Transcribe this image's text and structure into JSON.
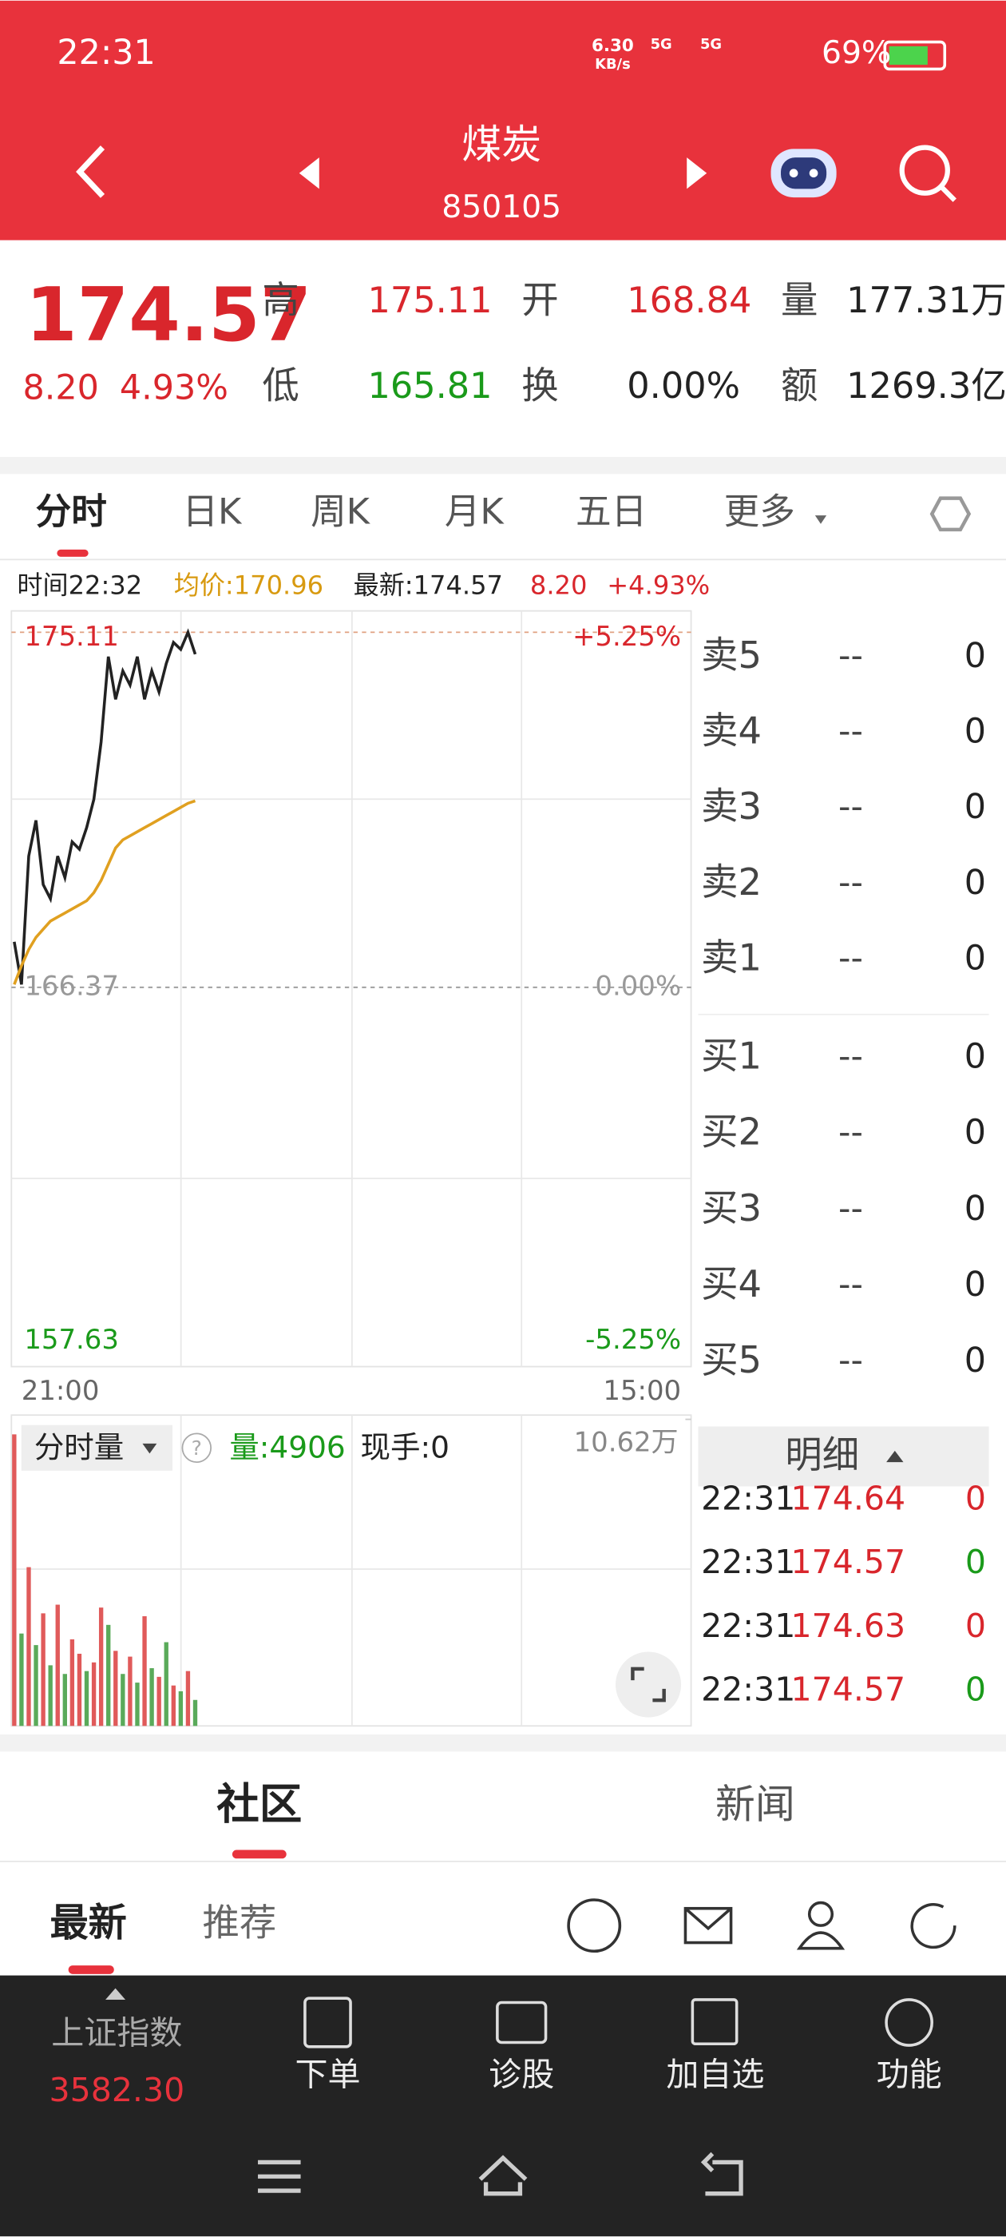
{
  "status_bar": {
    "time": "22:31",
    "network_speed": "6.30",
    "network_unit": "KB/s",
    "signal_1": "5G",
    "signal_2": "5G",
    "battery": "69%"
  },
  "header": {
    "title": "煤炭",
    "code": "850105"
  },
  "quote": {
    "price": "174.57",
    "change": "8.20",
    "change_pct": "4.93%",
    "stats": [
      [
        {
          "label": "高",
          "value": "175.11",
          "color": "#d9262c"
        },
        {
          "label": "开",
          "value": "168.84",
          "color": "#d9262c"
        },
        {
          "label": "量",
          "value": "177.31万",
          "color": "#222222"
        }
      ],
      [
        {
          "label": "低",
          "value": "165.81",
          "color": "#1a9a1a"
        },
        {
          "label": "换",
          "value": "0.00%",
          "color": "#222222"
        },
        {
          "label": "额",
          "value": "1269.3亿",
          "color": "#222222"
        }
      ]
    ]
  },
  "tabs": [
    "分时",
    "日K",
    "周K",
    "月K",
    "五日",
    "更多"
  ],
  "info_bar": {
    "time": "时间22:32",
    "avg": "均价:170.96",
    "latest": "最新:174.57",
    "change": "8.20",
    "change_pct": "+4.93%"
  },
  "chart_data": {
    "type": "line",
    "ylim": [
      157.63,
      175.11
    ],
    "yticks": [
      157.63,
      166.37,
      175.11
    ],
    "right_labels": [
      "-5.25%",
      "0.00%",
      "+5.25%"
    ],
    "x_labels": [
      "21:00",
      "15:00"
    ],
    "series": [
      {
        "name": "price",
        "color": "#222222",
        "values": [
          167.49,
          166.44,
          169.6,
          170.48,
          168.9,
          168.55,
          169.6,
          169.07,
          169.95,
          169.77,
          170.3,
          171.0,
          172.41,
          174.51,
          173.46,
          174.16,
          173.81,
          174.51,
          173.46,
          174.16,
          173.64,
          174.34,
          174.86,
          174.69,
          175.11,
          174.57
        ]
      },
      {
        "name": "avg",
        "color": "#e0a020",
        "values": [
          166.44,
          166.9,
          167.3,
          167.6,
          167.8,
          168.0,
          168.1,
          168.2,
          168.3,
          168.4,
          168.5,
          168.7,
          169.0,
          169.4,
          169.8,
          170.0,
          170.1,
          170.2,
          170.3,
          170.4,
          170.5,
          170.6,
          170.7,
          170.8,
          170.9,
          170.96
        ]
      }
    ]
  },
  "volume_chart": {
    "type": "bar",
    "selector": "分时量",
    "help": "?",
    "volume": "量:4906",
    "hand": "现手:0",
    "ylim": [
      0,
      10.62
    ],
    "yticks": [
      {
        "value": 10.62,
        "label": "10.62万"
      }
    ],
    "values": [
      10.1,
      3.2,
      5.5,
      2.8,
      3.9,
      2.1,
      4.2,
      1.8,
      3.0,
      2.5,
      1.9,
      2.2,
      4.1,
      3.5,
      2.6,
      1.8,
      2.4,
      1.5,
      3.8,
      2.0,
      1.7,
      2.9,
      1.4,
      1.2,
      1.9,
      0.9
    ],
    "colors": [
      "#e05a5a",
      "#5aaa5a",
      "#e05a5a",
      "#5aaa5a",
      "#e05a5a",
      "#5aaa5a",
      "#e05a5a",
      "#5aaa5a",
      "#e05a5a",
      "#e05a5a",
      "#5aaa5a",
      "#e05a5a",
      "#e05a5a",
      "#5aaa5a",
      "#e05a5a",
      "#5aaa5a",
      "#e05a5a",
      "#5aaa5a",
      "#e05a5a",
      "#5aaa5a",
      "#e05a5a",
      "#5aaa5a",
      "#e05a5a",
      "#5aaa5a",
      "#e05a5a",
      "#5aaa5a"
    ]
  },
  "order_book": {
    "asks": [
      {
        "label": "卖5",
        "price": "--",
        "volume": "0"
      },
      {
        "label": "卖4",
        "price": "--",
        "volume": "0"
      },
      {
        "label": "卖3",
        "price": "--",
        "volume": "0"
      },
      {
        "label": "卖2",
        "price": "--",
        "volume": "0"
      },
      {
        "label": "卖1",
        "price": "--",
        "volume": "0"
      }
    ],
    "bids": [
      {
        "label": "买1",
        "price": "--",
        "volume": "0"
      },
      {
        "label": "买2",
        "price": "--",
        "volume": "0"
      },
      {
        "label": "买3",
        "price": "--",
        "volume": "0"
      },
      {
        "label": "买4",
        "price": "--",
        "volume": "0"
      },
      {
        "label": "买5",
        "price": "--",
        "volume": "0"
      }
    ]
  },
  "details": {
    "title": "明细",
    "rows": [
      {
        "time": "22:31",
        "price": "174.64",
        "volume": "0",
        "color": "#d9262c"
      },
      {
        "time": "22:31",
        "price": "174.57",
        "volume": "0",
        "color": "#1a9a1a"
      },
      {
        "time": "22:31",
        "price": "174.63",
        "volume": "0",
        "color": "#d9262c"
      },
      {
        "time": "22:31",
        "price": "174.57",
        "volume": "0",
        "color": "#1a9a1a"
      }
    ]
  },
  "community_tabs": [
    "社区",
    "新闻"
  ],
  "sub_tabs": [
    "最新",
    "推荐"
  ],
  "bottom_bar": {
    "index_name": "上证指数",
    "index_value": "3582.30",
    "actions": [
      "下单",
      "诊股",
      "加自选",
      "功能"
    ]
  }
}
